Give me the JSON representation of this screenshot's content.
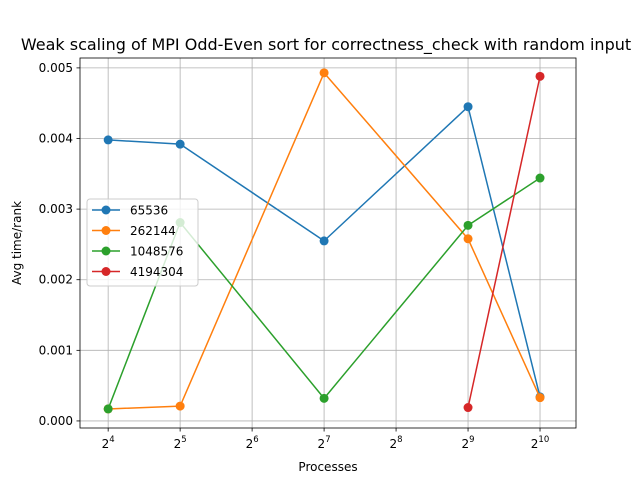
{
  "chart_data": {
    "type": "line",
    "title": "Weak scaling of MPI Odd-Even sort for correctness_check with random input",
    "xlabel": "Processes",
    "ylabel": "Avg time/rank",
    "x_scale": "log2",
    "xlim": [
      12.2,
      1448
    ],
    "ylim": [
      -0.0001,
      0.00514
    ],
    "x_ticks": [
      {
        "value": 16,
        "base": "2",
        "exp": "4"
      },
      {
        "value": 32,
        "base": "2",
        "exp": "5"
      },
      {
        "value": 64,
        "base": "2",
        "exp": "6"
      },
      {
        "value": 128,
        "base": "2",
        "exp": "7"
      },
      {
        "value": 256,
        "base": "2",
        "exp": "8"
      },
      {
        "value": 512,
        "base": "2",
        "exp": "9"
      },
      {
        "value": 1024,
        "base": "2",
        "exp": "10"
      }
    ],
    "y_ticks": [
      {
        "value": 0.0,
        "label": "0.000"
      },
      {
        "value": 0.001,
        "label": "0.001"
      },
      {
        "value": 0.002,
        "label": "0.002"
      },
      {
        "value": 0.003,
        "label": "0.003"
      },
      {
        "value": 0.004,
        "label": "0.004"
      },
      {
        "value": 0.005,
        "label": "0.005"
      }
    ],
    "grid": true,
    "legend_position": "center-left",
    "series": [
      {
        "name": "65536",
        "color": "#1f77b4",
        "points": [
          [
            16,
            0.00398
          ],
          [
            32,
            0.00392
          ],
          [
            128,
            0.00255
          ],
          [
            512,
            0.00445
          ],
          [
            1024,
            0.00034
          ]
        ]
      },
      {
        "name": "262144",
        "color": "#ff7f0e",
        "points": [
          [
            16,
            0.00017
          ],
          [
            32,
            0.00021
          ],
          [
            128,
            0.00493
          ],
          [
            512,
            0.00258
          ],
          [
            1024,
            0.00033
          ]
        ]
      },
      {
        "name": "1048576",
        "color": "#2ca02c",
        "points": [
          [
            16,
            0.00017
          ],
          [
            32,
            0.00281
          ],
          [
            128,
            0.00032
          ],
          [
            512,
            0.00277
          ],
          [
            1024,
            0.00344
          ]
        ]
      },
      {
        "name": "4194304",
        "color": "#d62728",
        "points": [
          [
            512,
            0.00019
          ],
          [
            1024,
            0.00488
          ]
        ]
      }
    ]
  }
}
